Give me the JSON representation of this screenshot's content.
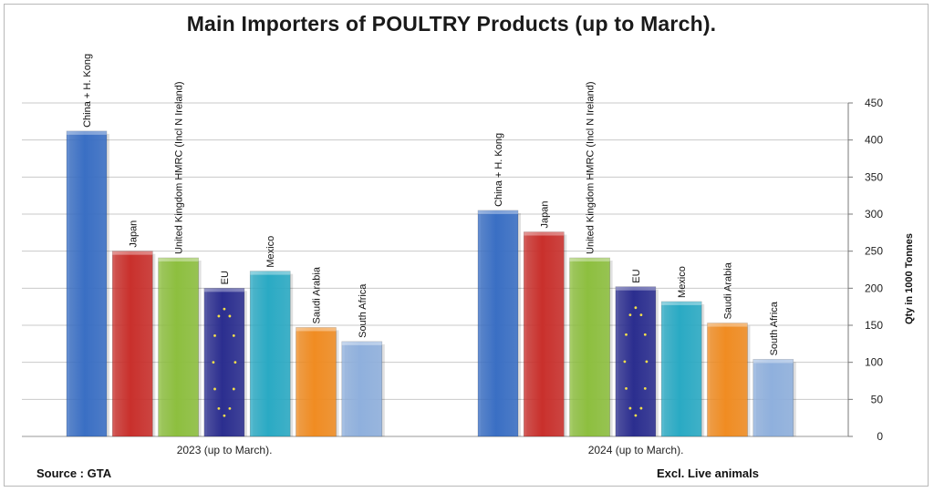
{
  "chart_data": {
    "type": "bar",
    "title": "Main Importers of POULTRY Products (up to March).",
    "categories": [
      "2023 (up to March).",
      "2024 (up to March)."
    ],
    "series": [
      {
        "name": "China + H. Kong",
        "values": [
          412,
          305
        ],
        "color": "#3a6fc4"
      },
      {
        "name": "Japan",
        "values": [
          250,
          276
        ],
        "color": "#c9302c"
      },
      {
        "name": "United Kingdom HMRC (Incl N Ireland)",
        "values": [
          241,
          241
        ],
        "color": "#8dbf3f"
      },
      {
        "name": "EU",
        "values": [
          200,
          202
        ],
        "color": "#2b2e8f"
      },
      {
        "name": "Mexico",
        "values": [
          223,
          182
        ],
        "color": "#2aaac4"
      },
      {
        "name": "Saudi Arabia",
        "values": [
          147,
          153
        ],
        "color": "#f08c22"
      },
      {
        "name": "South Africa",
        "values": [
          128,
          104
        ],
        "color": "#8fb0dd"
      }
    ],
    "ylabel": "Qty in 1000 Tonnes",
    "ylim": [
      0,
      450
    ],
    "yticks": [
      0,
      50,
      100,
      150,
      200,
      250,
      300,
      350,
      400,
      450
    ],
    "y_axis_side": "right",
    "grid": true,
    "legend": "none (series names printed above bars)"
  },
  "notes": {
    "source": "Source : GTA",
    "excl": "Excl. Live animals"
  }
}
